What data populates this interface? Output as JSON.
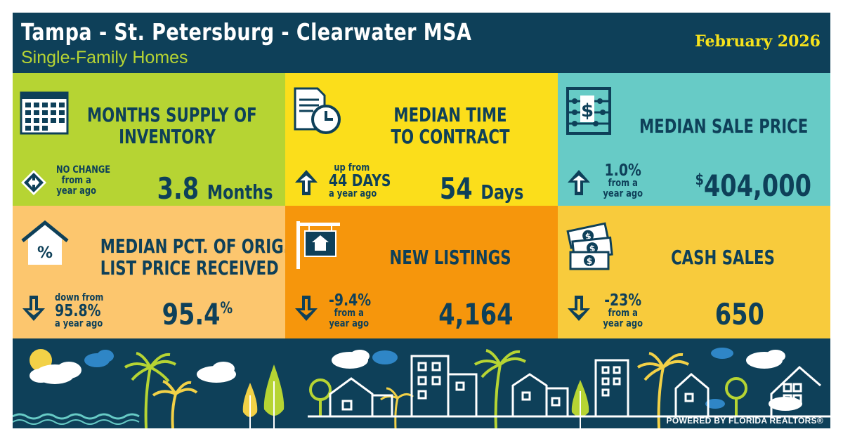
{
  "header": {
    "title": "Tampa - St. Petersburg - Clearwater MSA",
    "subtitle": "Single-Family Homes",
    "date": "February 2026"
  },
  "colors": {
    "navy": "#0e4059",
    "lime": "#b6d433",
    "yellow": "#fbde1b",
    "teal": "#67cbc6",
    "peach": "#fcc66e",
    "orange": "#f6960c",
    "gold": "#f8cb3c"
  },
  "tiles": [
    {
      "label_line1": "MONTHS SUPPLY OF",
      "label_line2": "INVENTORY",
      "value": "3.8",
      "unit": "Months",
      "change": {
        "direction": "none",
        "l1": "NO CHANGE",
        "l2": "from a",
        "l3": "year ago"
      },
      "icon": "calendar-icon"
    },
    {
      "label_line1": "MEDIAN TIME",
      "label_line2": "TO CONTRACT",
      "value": "54",
      "unit": "Days",
      "change": {
        "direction": "up",
        "l1": "up from",
        "l2": "44 DAYS",
        "l3": "a year ago"
      },
      "icon": "document-clock-icon"
    },
    {
      "label_line1": "MEDIAN SALE PRICE",
      "label_line2": "",
      "value_prefix": "$",
      "value": "404,000",
      "change": {
        "direction": "up",
        "l1": "1.0%",
        "l2": "from a",
        "l3": "year ago"
      },
      "icon": "abacus-icon"
    },
    {
      "label_line1": "MEDIAN PCT. OF ORIG.",
      "label_line2": "LIST PRICE RECEIVED",
      "value": "95.4",
      "value_suffix": "%",
      "change": {
        "direction": "down",
        "l1": "down from",
        "l2": "95.8%",
        "l3": "a year ago"
      },
      "icon": "house-percent-icon"
    },
    {
      "label_line1": "NEW LISTINGS",
      "label_line2": "",
      "value": "4,164",
      "change": {
        "direction": "down",
        "l1": "-9.4%",
        "l2": "from a",
        "l3": "year ago"
      },
      "icon": "listing-sign-icon"
    },
    {
      "label_line1": "CASH SALES",
      "label_line2": "",
      "value": "650",
      "change": {
        "direction": "down",
        "l1": "-23%",
        "l2": "from a",
        "l3": "year ago"
      },
      "icon": "cash-bills-icon"
    }
  ],
  "footer": {
    "powered_by": "POWERED BY FLORIDA REALTORS®"
  }
}
